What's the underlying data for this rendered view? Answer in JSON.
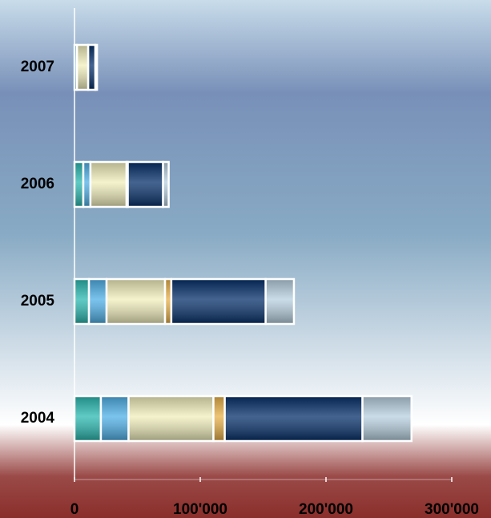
{
  "chart_data": {
    "type": "stacked-barh",
    "categories": [
      "2004",
      "2005",
      "2006",
      "2007"
    ],
    "series": [
      {
        "color": "#2bb8b0",
        "values": [
          21000,
          11500,
          7000,
          0
        ]
      },
      {
        "color": "#4fb0e8",
        "values": [
          22000,
          14000,
          5700,
          2000
        ]
      },
      {
        "color": "#f0eebc",
        "values": [
          67500,
          46500,
          28700,
          8900
        ]
      },
      {
        "color": "#e8b048",
        "values": [
          9000,
          5000,
          1000,
          0
        ]
      },
      {
        "color": "#06306a",
        "values": [
          109500,
          75000,
          28000,
          5700
        ]
      },
      {
        "color": "#b8d0e0",
        "values": [
          39000,
          22500,
          4500,
          1300
        ]
      }
    ],
    "xlim": [
      0,
      300000
    ],
    "xticks": [
      0,
      {
        "value": 100000,
        "label": "100'000"
      },
      {
        "value": 200000,
        "label": "200'000"
      },
      {
        "value": 300000,
        "label": "300'000"
      }
    ]
  }
}
